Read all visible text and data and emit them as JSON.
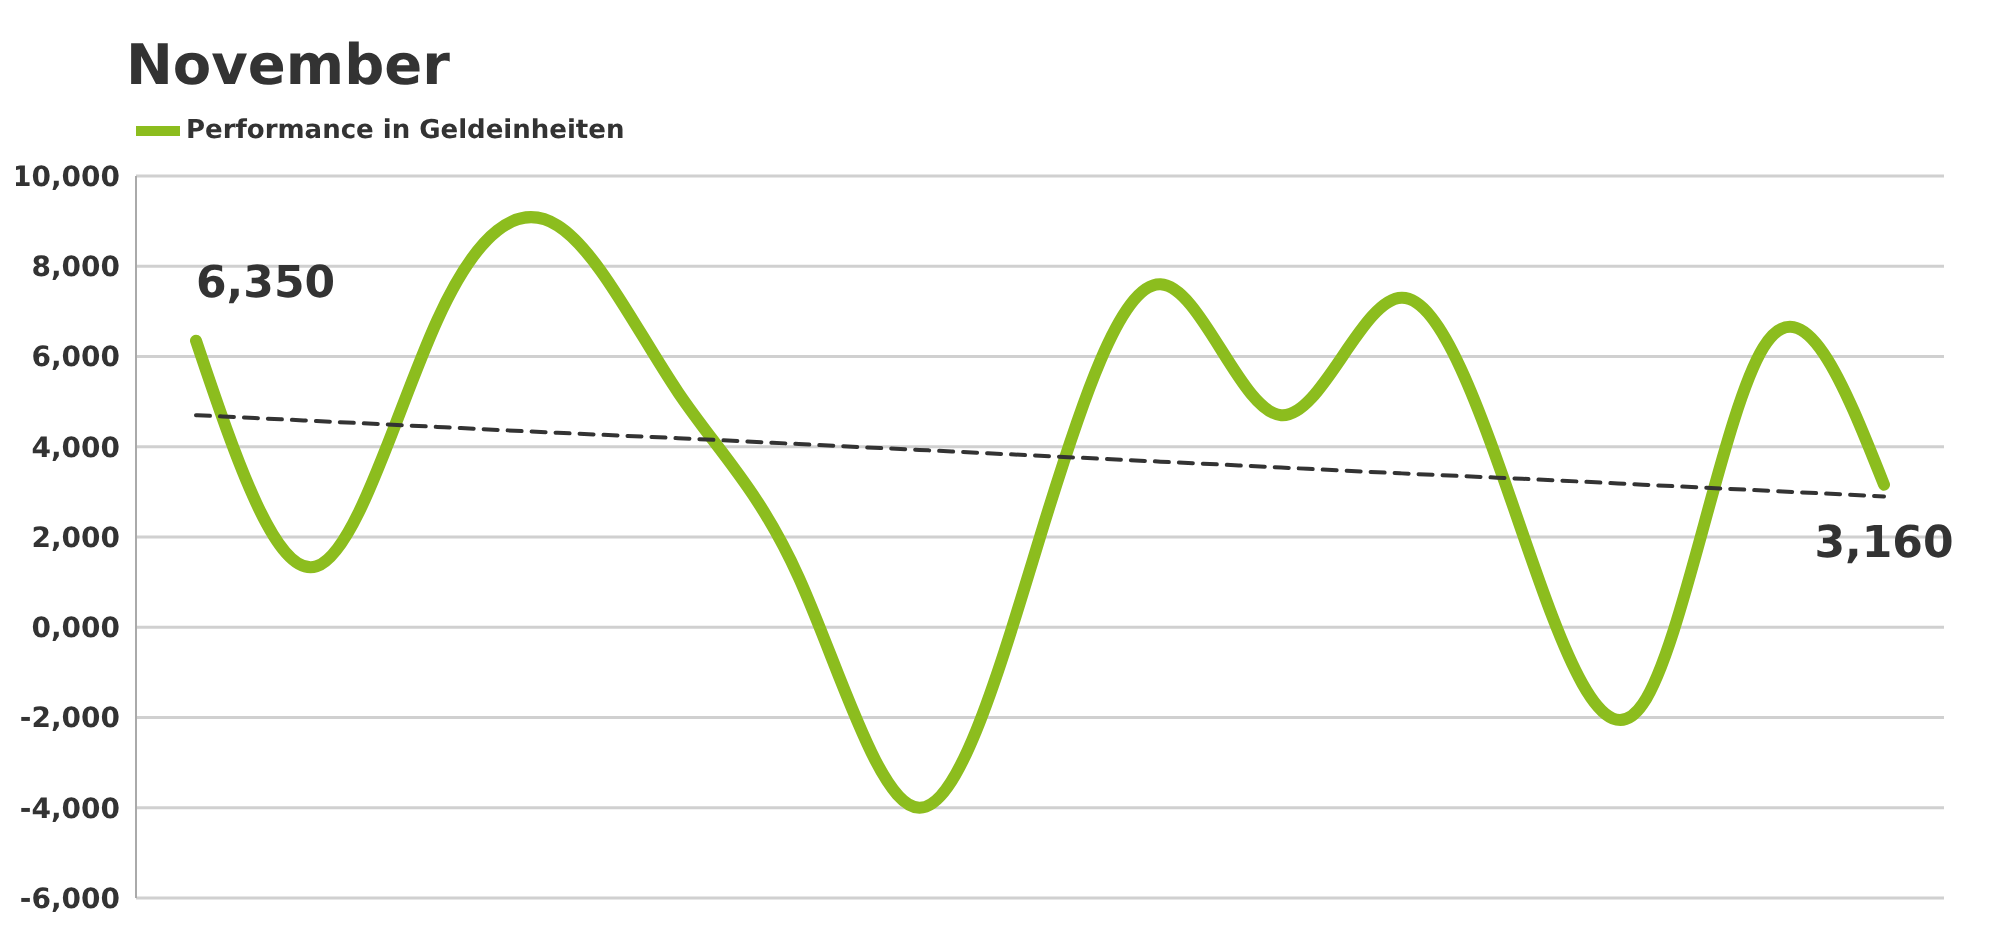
{
  "chart_data": {
    "type": "line",
    "title": "November",
    "legend": "top left",
    "grid": "y",
    "marker": "none",
    "categories": [
      null,
      null,
      null,
      null,
      null,
      null,
      null,
      null,
      null,
      null,
      null,
      null,
      null,
      null,
      null
    ],
    "series": [
      {
        "name": "Performance in Geldeinheiten",
        "color": "#8cbd1e",
        "values": [
          6350,
          1350,
          6800,
          8900,
          5200,
          1100,
          -4000,
          2000,
          7600,
          4700,
          7300,
          2100,
          -1700,
          6200,
          3160
        ],
        "value_labels": [
          "6,350",
          null,
          null,
          null,
          null,
          null,
          null,
          null,
          null,
          null,
          null,
          null,
          null,
          null,
          "3,160"
        ]
      },
      {
        "type": "line",
        "color": "#333333",
        "line_style": "dashed",
        "values": [
          4700,
          4570,
          4440,
          4310,
          4190,
          4060,
          3930,
          3800,
          3670,
          3540,
          3410,
          3290,
          3160,
          3030,
          2900
        ]
      }
    ],
    "ylim": [
      -6000,
      10000
    ],
    "yticks": [
      {
        "value": -6000,
        "label": "-6,000"
      },
      {
        "value": -4000,
        "label": "-4,000"
      },
      {
        "value": -2000,
        "label": "-2,000"
      },
      {
        "value": 0,
        "label": "0,000"
      },
      {
        "value": 2000,
        "label": "2,000"
      },
      {
        "value": 4000,
        "label": "4,000"
      },
      {
        "value": 6000,
        "label": "6,000"
      },
      {
        "value": 8000,
        "label": "8,000"
      },
      {
        "value": 10000,
        "label": "10,000"
      }
    ]
  }
}
